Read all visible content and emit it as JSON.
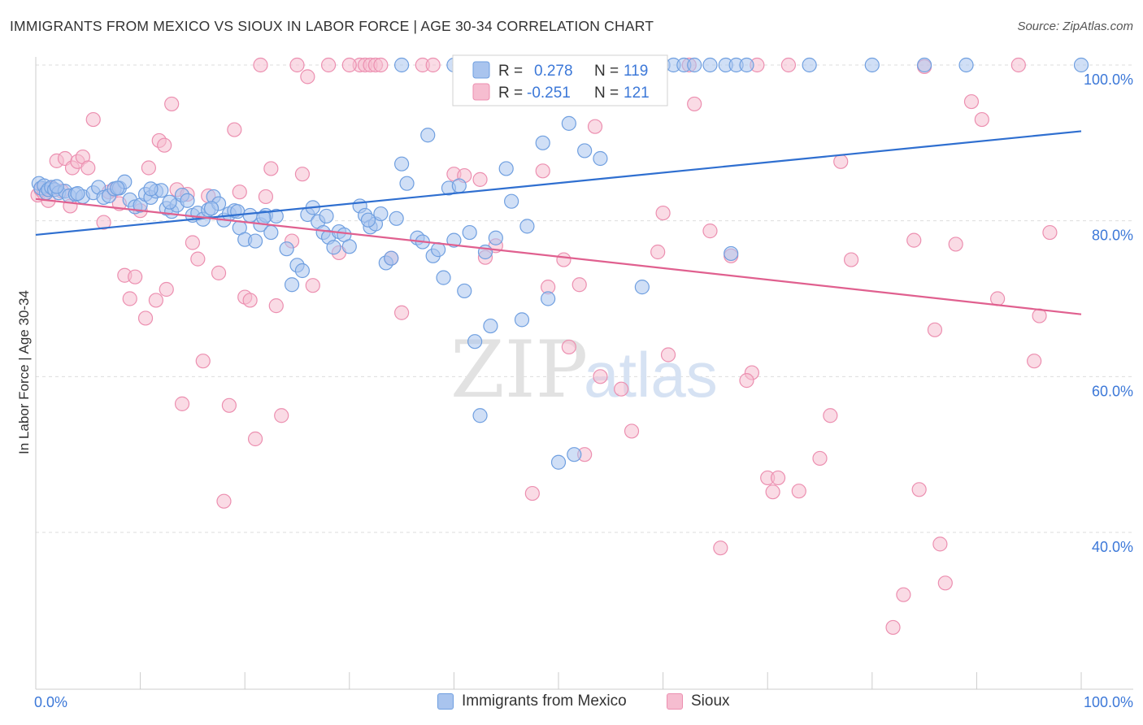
{
  "header": {
    "title": "IMMIGRANTS FROM MEXICO VS SIOUX IN LABOR FORCE | AGE 30-34 CORRELATION CHART",
    "source": "Source: ZipAtlas.com"
  },
  "watermark": {
    "zip": "ZIP",
    "atlas": "atlas"
  },
  "legend_top": {
    "rows": [
      {
        "r_label": "R =",
        "r_value": "0.278",
        "n_label": "N =",
        "n_value": "119"
      },
      {
        "r_label": "R =",
        "r_value": "-0.251",
        "n_label": "N =",
        "n_value": "121"
      }
    ]
  },
  "legend_bottom": {
    "items": [
      {
        "label": "Immigrants from Mexico"
      },
      {
        "label": "Sioux"
      }
    ]
  },
  "colors": {
    "blue_fill": "#a9c4ee",
    "blue_stroke": "#6f9fe0",
    "blue_line": "#2f6fd0",
    "pink_fill": "#f6bdd0",
    "pink_stroke": "#ec8fb0",
    "pink_line": "#e0608f",
    "tick_label": "#3c78d8",
    "grid": "#dddddd"
  },
  "chart_data": {
    "type": "scatter",
    "title": "IMMIGRANTS FROM MEXICO VS SIOUX IN LABOR FORCE | AGE 30-34 CORRELATION CHART",
    "xlabel": "",
    "ylabel": "In Labor Force | Age 30-34",
    "xlim": [
      0,
      100
    ],
    "ylim": [
      20,
      102
    ],
    "x_tick_labels": [
      "0.0%",
      "100.0%"
    ],
    "y_ticks": [
      40,
      60,
      80,
      100
    ],
    "y_tick_labels": [
      "40.0%",
      "60.0%",
      "80.0%",
      "100.0%"
    ],
    "grid": true,
    "legend_position": "top-center",
    "series": [
      {
        "name": "Immigrants from Mexico",
        "color": "blue",
        "trend": {
          "x": [
            0,
            100
          ],
          "y": [
            78.2,
            91.5
          ]
        },
        "points": [
          [
            0.3,
            84.8
          ],
          [
            0.5,
            84.2
          ],
          [
            0.8,
            84.5
          ],
          [
            1.0,
            83.6
          ],
          [
            1.2,
            84.0
          ],
          [
            1.5,
            84.3
          ],
          [
            1.8,
            84.0
          ],
          [
            2.2,
            83.6
          ],
          [
            2.8,
            83.8
          ],
          [
            3.2,
            83.2
          ],
          [
            3.8,
            83.4
          ],
          [
            4.5,
            83.1
          ],
          [
            5.5,
            83.6
          ],
          [
            6.0,
            84.3
          ],
          [
            6.5,
            83.0
          ],
          [
            7.0,
            83.2
          ],
          [
            7.5,
            84.1
          ],
          [
            8.0,
            84.2
          ],
          [
            8.5,
            85.0
          ],
          [
            9.0,
            82.7
          ],
          [
            9.5,
            81.8
          ],
          [
            10.0,
            82.0
          ],
          [
            10.5,
            83.4
          ],
          [
            11.0,
            83.0
          ],
          [
            11.5,
            83.8
          ],
          [
            12.0,
            83.9
          ],
          [
            12.5,
            81.6
          ],
          [
            13.0,
            81.2
          ],
          [
            13.5,
            82.0
          ],
          [
            14.0,
            83.3
          ],
          [
            14.5,
            82.6
          ],
          [
            15.0,
            80.7
          ],
          [
            15.5,
            81.0
          ],
          [
            16.0,
            80.2
          ],
          [
            16.5,
            81.4
          ],
          [
            17.0,
            83.1
          ],
          [
            17.5,
            82.2
          ],
          [
            18.0,
            80.1
          ],
          [
            18.5,
            80.9
          ],
          [
            19.0,
            81.3
          ],
          [
            19.5,
            79.1
          ],
          [
            20.0,
            77.6
          ],
          [
            20.5,
            80.7
          ],
          [
            21.0,
            77.4
          ],
          [
            21.5,
            79.5
          ],
          [
            22.0,
            80.7
          ],
          [
            22.5,
            78.5
          ],
          [
            23.0,
            80.6
          ],
          [
            24.0,
            76.4
          ],
          [
            24.5,
            71.8
          ],
          [
            25.0,
            74.3
          ],
          [
            25.5,
            73.6
          ],
          [
            26.0,
            80.8
          ],
          [
            26.5,
            81.7
          ],
          [
            27.0,
            79.9
          ],
          [
            27.5,
            78.5
          ],
          [
            28.0,
            77.9
          ],
          [
            28.5,
            76.6
          ],
          [
            29.0,
            78.6
          ],
          [
            29.5,
            78.2
          ],
          [
            30.0,
            76.7
          ],
          [
            31.0,
            81.9
          ],
          [
            31.5,
            80.7
          ],
          [
            32.0,
            79.2
          ],
          [
            32.5,
            79.6
          ],
          [
            33.0,
            80.9
          ],
          [
            33.5,
            74.6
          ],
          [
            34.0,
            75.2
          ],
          [
            34.5,
            80.3
          ],
          [
            35.0,
            87.3
          ],
          [
            35.5,
            84.8
          ],
          [
            36.5,
            77.8
          ],
          [
            37.0,
            77.3
          ],
          [
            37.5,
            91.0
          ],
          [
            38.0,
            75.5
          ],
          [
            38.5,
            76.3
          ],
          [
            39.0,
            72.7
          ],
          [
            39.5,
            84.2
          ],
          [
            40.0,
            77.5
          ],
          [
            40.5,
            84.5
          ],
          [
            41.0,
            71.0
          ],
          [
            41.5,
            78.5
          ],
          [
            42.0,
            64.5
          ],
          [
            42.5,
            55.0
          ],
          [
            43.0,
            76.0
          ],
          [
            43.5,
            66.5
          ],
          [
            44.0,
            77.8
          ],
          [
            45.0,
            86.7
          ],
          [
            45.5,
            82.5
          ],
          [
            46.5,
            67.3
          ],
          [
            47.0,
            79.3
          ],
          [
            48.5,
            90.0
          ],
          [
            49.0,
            70.0
          ],
          [
            50.0,
            49.0
          ],
          [
            51.0,
            92.5
          ],
          [
            51.5,
            50.0
          ],
          [
            52.5,
            89.0
          ],
          [
            53.0,
            100.0
          ],
          [
            54.0,
            88.0
          ],
          [
            58.0,
            71.5
          ],
          [
            60.0,
            100.0
          ],
          [
            61.0,
            100.0
          ],
          [
            62.0,
            100.0
          ],
          [
            66.0,
            100.0
          ],
          [
            67.0,
            100.0
          ],
          [
            68.0,
            100.0
          ],
          [
            74.0,
            100.0
          ],
          [
            80.0,
            100.0
          ],
          [
            85.0,
            100.0
          ],
          [
            89.0,
            100.0
          ],
          [
            100.0,
            100.0
          ],
          [
            66.5,
            75.8
          ],
          [
            35.0,
            100.0
          ],
          [
            40.0,
            100.0
          ],
          [
            47.5,
            100.0
          ],
          [
            63.0,
            100.0
          ],
          [
            64.5,
            100.0
          ],
          [
            57.0,
            100.0
          ],
          [
            58.5,
            100.0
          ],
          [
            11.0,
            84.1
          ],
          [
            2.0,
            84.4
          ],
          [
            4.0,
            83.5
          ],
          [
            7.8,
            84.2
          ],
          [
            12.8,
            82.4
          ],
          [
            16.8,
            81.6
          ],
          [
            19.3,
            81.2
          ],
          [
            21.8,
            80.4
          ],
          [
            27.8,
            80.6
          ],
          [
            31.8,
            80.1
          ]
        ]
      },
      {
        "name": "Sioux",
        "color": "pink",
        "trend": {
          "x": [
            0,
            100
          ],
          "y": [
            82.8,
            68.0
          ]
        },
        "points": [
          [
            0.2,
            83.3
          ],
          [
            0.5,
            84.0
          ],
          [
            0.8,
            83.5
          ],
          [
            1.2,
            82.6
          ],
          [
            1.5,
            84.2
          ],
          [
            2.0,
            87.7
          ],
          [
            2.5,
            83.8
          ],
          [
            2.8,
            88.0
          ],
          [
            3.3,
            81.9
          ],
          [
            3.5,
            86.8
          ],
          [
            4.0,
            87.6
          ],
          [
            4.5,
            88.2
          ],
          [
            5.0,
            86.8
          ],
          [
            5.5,
            93.0
          ],
          [
            6.5,
            79.8
          ],
          [
            7.0,
            83.7
          ],
          [
            7.5,
            84.0
          ],
          [
            8.0,
            82.2
          ],
          [
            8.5,
            73.0
          ],
          [
            9.0,
            70.0
          ],
          [
            9.5,
            72.8
          ],
          [
            10.0,
            81.3
          ],
          [
            10.5,
            67.5
          ],
          [
            10.8,
            86.8
          ],
          [
            11.5,
            69.8
          ],
          [
            11.8,
            90.3
          ],
          [
            12.5,
            71.2
          ],
          [
            12.3,
            89.7
          ],
          [
            13.0,
            95.0
          ],
          [
            13.5,
            84.0
          ],
          [
            14.0,
            56.5
          ],
          [
            14.5,
            83.4
          ],
          [
            15.0,
            77.2
          ],
          [
            15.5,
            75.1
          ],
          [
            16.0,
            62.0
          ],
          [
            16.5,
            83.2
          ],
          [
            17.5,
            73.3
          ],
          [
            18.0,
            44.0
          ],
          [
            18.5,
            56.3
          ],
          [
            19.0,
            91.7
          ],
          [
            19.5,
            83.7
          ],
          [
            20.0,
            70.2
          ],
          [
            20.5,
            69.8
          ],
          [
            21.0,
            52.0
          ],
          [
            21.5,
            100.0
          ],
          [
            22.0,
            83.1
          ],
          [
            22.5,
            86.7
          ],
          [
            23.0,
            69.1
          ],
          [
            23.5,
            55.0
          ],
          [
            24.5,
            77.4
          ],
          [
            25.0,
            100.0
          ],
          [
            25.5,
            86.0
          ],
          [
            26.0,
            98.5
          ],
          [
            26.5,
            71.7
          ],
          [
            28.0,
            100.0
          ],
          [
            29.0,
            75.9
          ],
          [
            31.0,
            100.0
          ],
          [
            31.5,
            100.0
          ],
          [
            32.0,
            100.0
          ],
          [
            32.5,
            100.0
          ],
          [
            33.0,
            100.0
          ],
          [
            34.0,
            75.2
          ],
          [
            35.0,
            68.2
          ],
          [
            37.0,
            100.0
          ],
          [
            40.0,
            86.0
          ],
          [
            41.0,
            85.8
          ],
          [
            42.5,
            85.3
          ],
          [
            43.0,
            75.3
          ],
          [
            44.0,
            76.8
          ],
          [
            46.5,
            100.0
          ],
          [
            47.5,
            45.0
          ],
          [
            48.5,
            86.4
          ],
          [
            49.0,
            71.5
          ],
          [
            50.5,
            75.0
          ],
          [
            51.0,
            63.8
          ],
          [
            52.0,
            71.8
          ],
          [
            52.5,
            50.0
          ],
          [
            53.5,
            92.1
          ],
          [
            54.0,
            60.0
          ],
          [
            55.0,
            100.0
          ],
          [
            56.0,
            58.4
          ],
          [
            57.0,
            53.0
          ],
          [
            59.5,
            76.0
          ],
          [
            60.0,
            81.0
          ],
          [
            63.0,
            95.0
          ],
          [
            64.5,
            78.7
          ],
          [
            65.5,
            38.0
          ],
          [
            66.5,
            75.5
          ],
          [
            68.5,
            60.5
          ],
          [
            68.0,
            59.5
          ],
          [
            69.0,
            100.0
          ],
          [
            70.0,
            47.0
          ],
          [
            70.5,
            45.2
          ],
          [
            71.0,
            47.0
          ],
          [
            73.0,
            45.3
          ],
          [
            75.0,
            49.5
          ],
          [
            76.0,
            55.0
          ],
          [
            77.0,
            87.6
          ],
          [
            78.0,
            75.0
          ],
          [
            82.0,
            27.8
          ],
          [
            83.0,
            32.0
          ],
          [
            84.0,
            77.5
          ],
          [
            84.5,
            45.5
          ],
          [
            85.0,
            99.8
          ],
          [
            86.0,
            66.0
          ],
          [
            86.5,
            38.5
          ],
          [
            87.0,
            33.5
          ],
          [
            88.0,
            77.0
          ],
          [
            89.5,
            95.3
          ],
          [
            90.5,
            93.0
          ],
          [
            92.0,
            70.0
          ],
          [
            94.0,
            100.0
          ],
          [
            95.5,
            62.0
          ],
          [
            96.0,
            67.8
          ],
          [
            97.0,
            78.5
          ],
          [
            60.5,
            62.8
          ],
          [
            30.0,
            100.0
          ],
          [
            38.0,
            100.0
          ],
          [
            62.5,
            100.0
          ],
          [
            72.0,
            100.0
          ],
          [
            50.0,
            100.0
          ]
        ]
      }
    ]
  }
}
